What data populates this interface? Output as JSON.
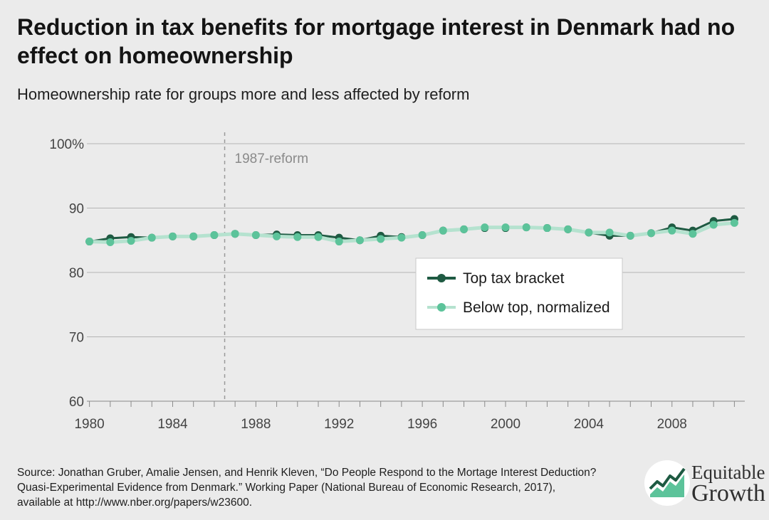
{
  "header": {
    "title": "Reduction in tax benefits for mortgage interest in Denmark had no effect on homeownership",
    "subtitle": "Homeownership rate for groups more and less affected by reform"
  },
  "footer": {
    "source": "Source: Jonathan Gruber, Amalie Jensen, and Henrik Kleven, “Do People Respond to the Mortage Interest Deduction? Quasi-Experimental Evidence from Denmark.” Working Paper (National Bureau of Economic Research, 2017), available at http://www.nber.org/papers/w23600."
  },
  "logo": {
    "line1": "Equitable",
    "line2": "Growth"
  },
  "colors": {
    "background": "#ebebeb",
    "top_bracket": "#1e5a42",
    "below_top": "#5cc39a",
    "below_top_line": "#b5e2cf",
    "grid": "#b4b4b4",
    "reform_line": "#9a9a9a"
  },
  "chart_data": {
    "type": "line",
    "title": "Reduction in tax benefits for mortgage interest in Denmark had no effect on homeownership",
    "subtitle": "Homeownership rate for groups more and less affected by reform",
    "xlabel": "",
    "ylabel": "",
    "x": [
      1980,
      1981,
      1982,
      1983,
      1984,
      1985,
      1986,
      1987,
      1988,
      1989,
      1990,
      1991,
      1992,
      1993,
      1994,
      1995,
      1996,
      1997,
      1998,
      1999,
      2000,
      2001,
      2002,
      2003,
      2004,
      2005,
      2006,
      2007,
      2008,
      2009,
      2010,
      2011
    ],
    "xlim": [
      1979.5,
      2011.5
    ],
    "ylim": [
      60,
      100
    ],
    "x_ticks": [
      1980,
      1984,
      1988,
      1992,
      1996,
      2000,
      2004,
      2008
    ],
    "y_ticks": [
      60,
      70,
      80,
      90,
      100
    ],
    "y_tick_labels": [
      "60",
      "70",
      "80",
      "90",
      "100%"
    ],
    "grid": true,
    "legend_position": "center-right",
    "annotation": {
      "x": 1986.5,
      "label": "1987-reform"
    },
    "series": [
      {
        "name": "Top tax bracket",
        "values": [
          84.8,
          85.3,
          85.5,
          85.4,
          85.6,
          85.6,
          85.8,
          86.0,
          85.8,
          85.9,
          85.8,
          85.8,
          85.4,
          85.0,
          85.7,
          85.5,
          85.8,
          86.5,
          86.7,
          86.9,
          86.9,
          87.0,
          86.9,
          86.7,
          86.2,
          85.7,
          85.7,
          86.1,
          87.0,
          86.5,
          88.0,
          88.3
        ]
      },
      {
        "name": "Below top, normalized",
        "values": [
          84.8,
          84.7,
          84.9,
          85.4,
          85.6,
          85.6,
          85.8,
          86.0,
          85.8,
          85.6,
          85.5,
          85.5,
          84.8,
          85.0,
          85.2,
          85.4,
          85.8,
          86.5,
          86.7,
          87.0,
          87.0,
          87.0,
          86.9,
          86.7,
          86.2,
          86.2,
          85.7,
          86.1,
          86.5,
          86.0,
          87.4,
          87.7
        ]
      }
    ]
  }
}
